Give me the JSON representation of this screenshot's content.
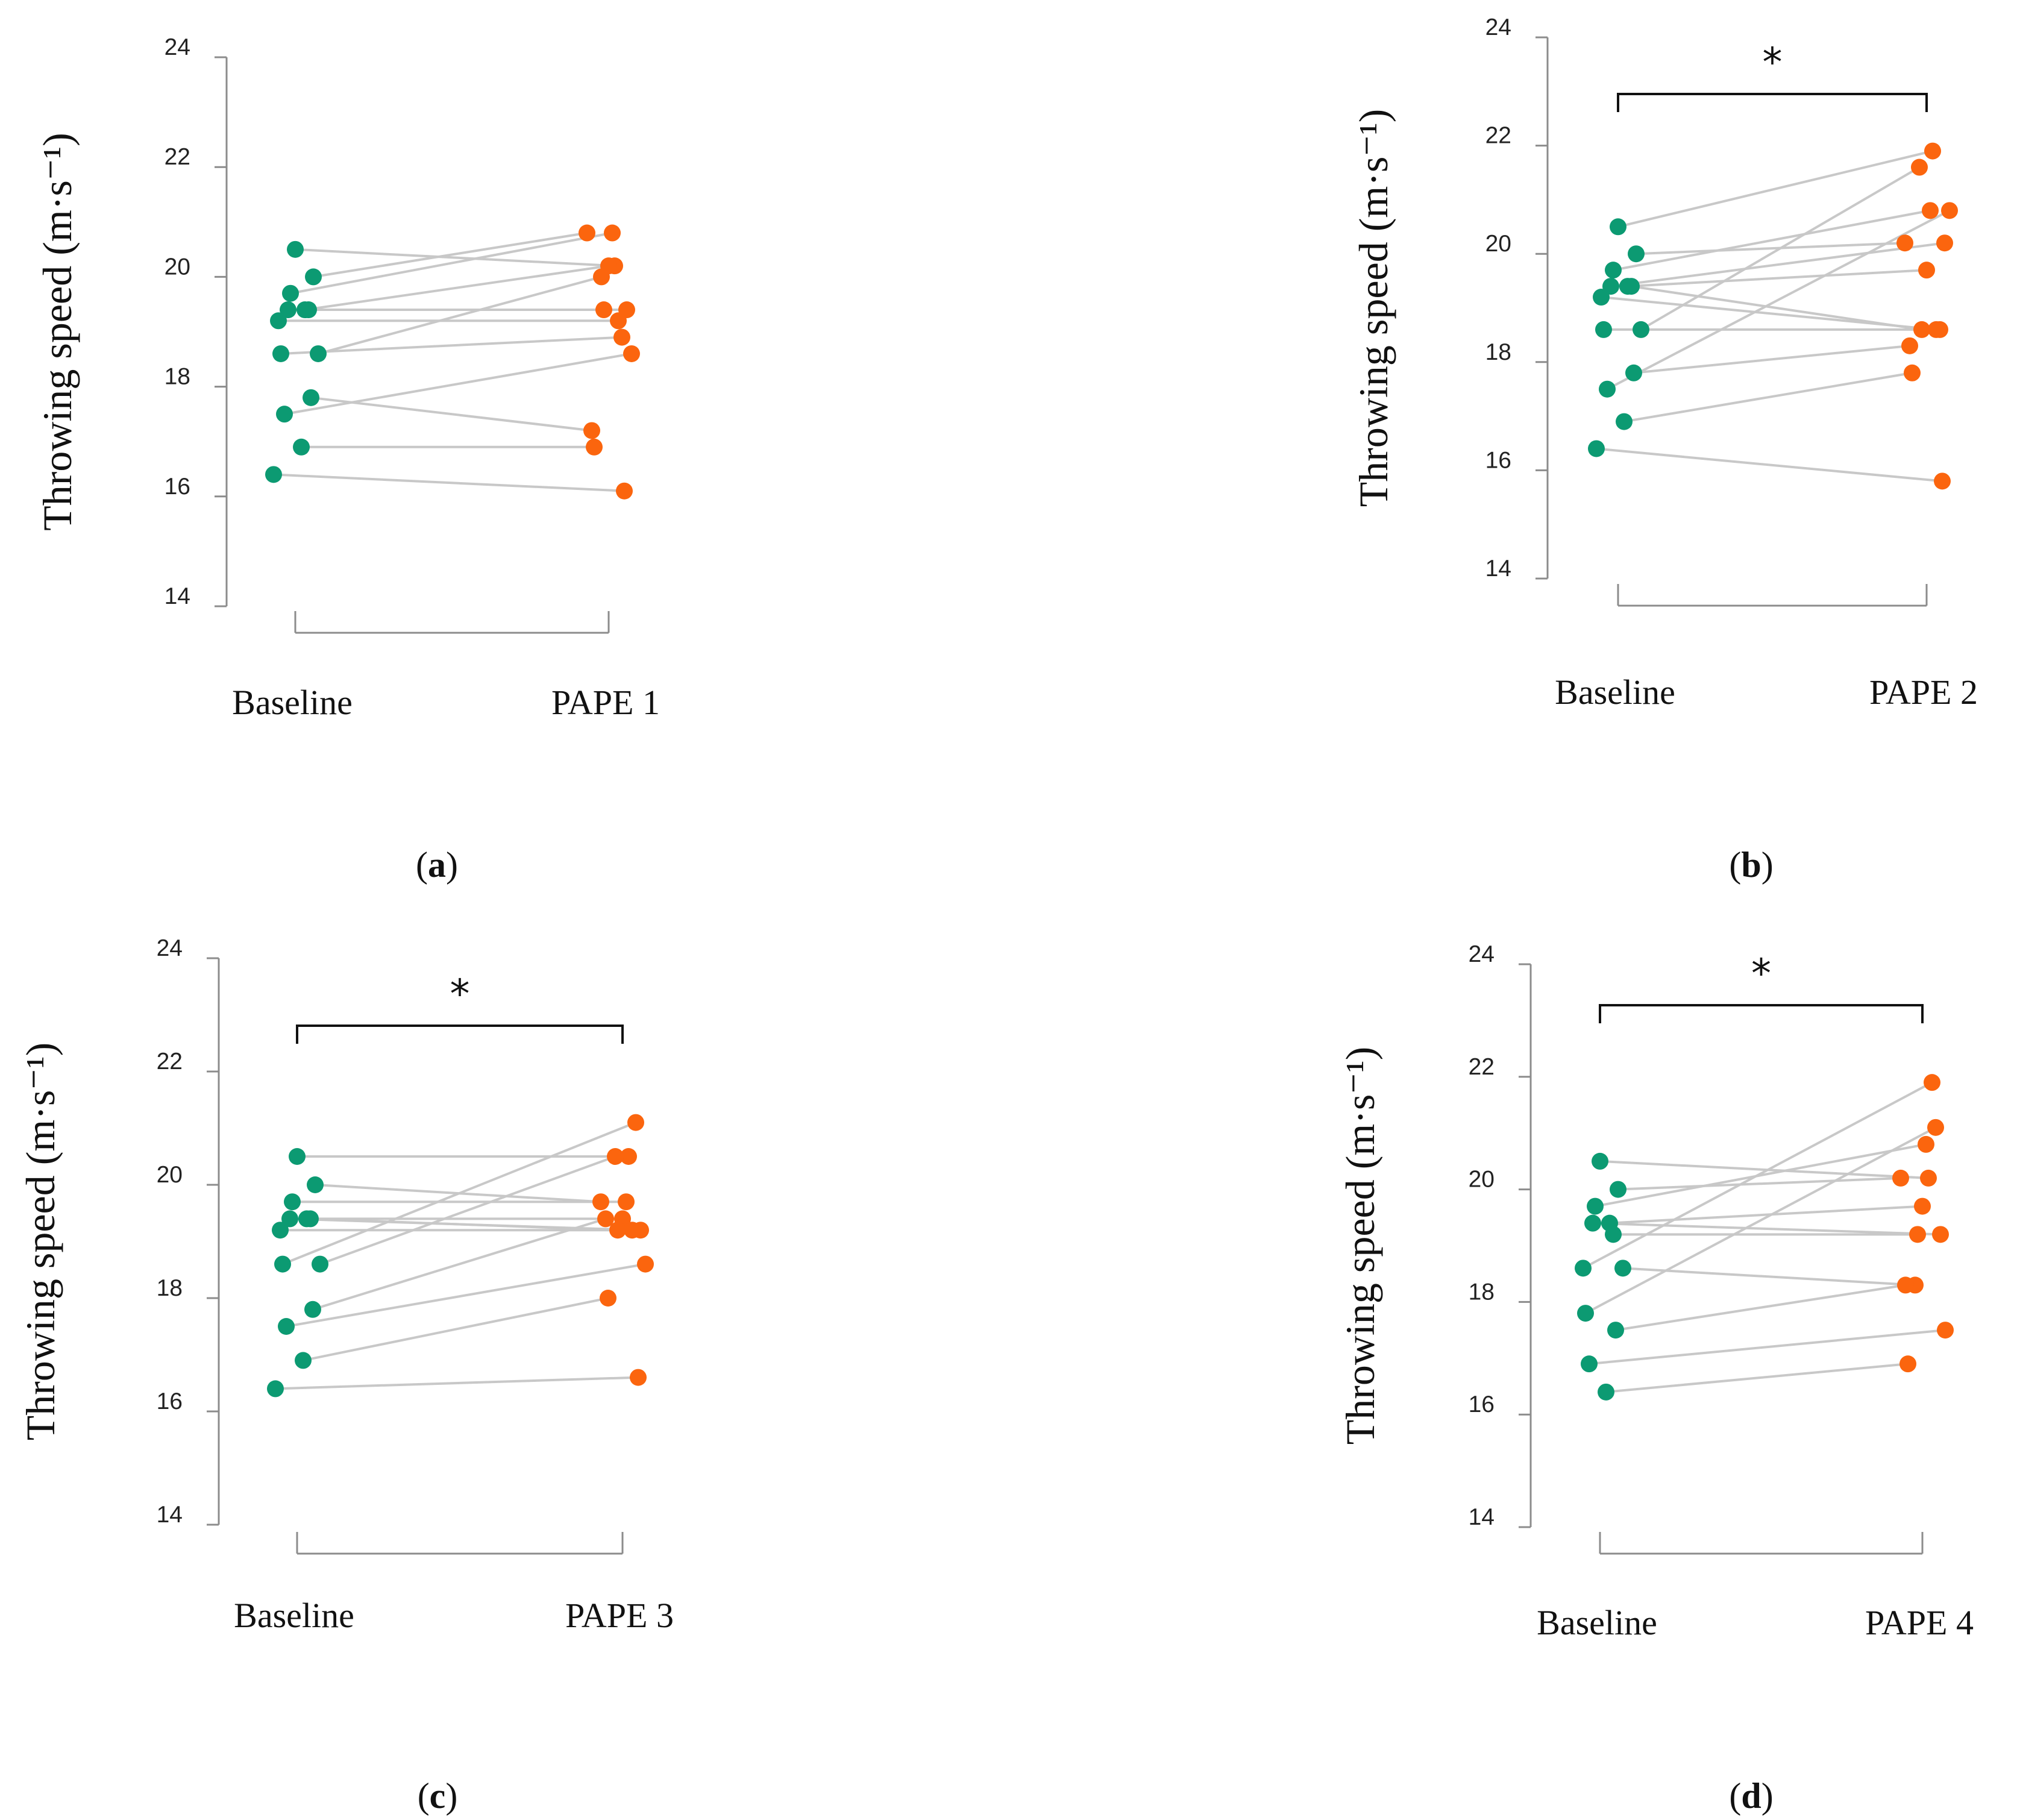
{
  "colors": {
    "baseline": "#0c9a72",
    "pape": "#fb650e",
    "line": "#c8c8c8",
    "axis": "#8c8c8c",
    "bracket": "#111111"
  },
  "chart_data": [
    {
      "type": "scatter",
      "panel": "a",
      "caption_label": "a",
      "ylabel": "Throwing speed (m·s⁻¹)",
      "ylim": [
        14,
        24
      ],
      "yticks": [
        "14",
        "16",
        "18",
        "20",
        "22",
        "24"
      ],
      "categories": [
        "Baseline",
        "PAPE 1"
      ],
      "significance": "",
      "pairs": [
        [
          20.5,
          20.2
        ],
        [
          20.0,
          20.8
        ],
        [
          19.7,
          20.8
        ],
        [
          19.4,
          20.2
        ],
        [
          19.4,
          19.4
        ],
        [
          19.4,
          19.4
        ],
        [
          19.2,
          19.2
        ],
        [
          18.6,
          20.0
        ],
        [
          18.6,
          18.9
        ],
        [
          17.8,
          17.2
        ],
        [
          17.5,
          18.6
        ],
        [
          16.9,
          16.9
        ],
        [
          16.4,
          16.1
        ]
      ]
    },
    {
      "type": "scatter",
      "panel": "b",
      "caption_label": "b",
      "ylabel": "Throwing speed (m·s⁻¹)",
      "ylim": [
        14,
        24
      ],
      "yticks": [
        "14",
        "16",
        "18",
        "20",
        "22",
        "24"
      ],
      "categories": [
        "Baseline",
        "PAPE 2"
      ],
      "significance": "*",
      "pairs": [
        [
          20.5,
          21.9
        ],
        [
          20.0,
          20.2
        ],
        [
          19.7,
          20.8
        ],
        [
          19.4,
          19.7
        ],
        [
          19.4,
          20.2
        ],
        [
          19.4,
          18.6
        ],
        [
          19.2,
          18.6
        ],
        [
          18.6,
          21.6
        ],
        [
          18.6,
          18.6
        ],
        [
          17.8,
          18.3
        ],
        [
          17.5,
          20.8
        ],
        [
          16.9,
          17.8
        ],
        [
          16.4,
          15.8
        ]
      ]
    },
    {
      "type": "scatter",
      "panel": "c",
      "caption_label": "c",
      "ylabel": "Throwing speed (m·s⁻¹)",
      "ylim": [
        14,
        24
      ],
      "yticks": [
        "14",
        "16",
        "18",
        "20",
        "22",
        "24"
      ],
      "categories": [
        "Baseline",
        "PAPE 3"
      ],
      "significance": "*",
      "pairs": [
        [
          20.5,
          20.5
        ],
        [
          20.0,
          19.7
        ],
        [
          19.7,
          19.7
        ],
        [
          19.4,
          19.4
        ],
        [
          19.4,
          19.2
        ],
        [
          19.4,
          19.2
        ],
        [
          19.2,
          19.2
        ],
        [
          18.6,
          20.5
        ],
        [
          18.6,
          21.1
        ],
        [
          17.8,
          19.4
        ],
        [
          17.5,
          18.6
        ],
        [
          16.9,
          18.0
        ],
        [
          16.4,
          16.6
        ]
      ]
    },
    {
      "type": "scatter",
      "panel": "d",
      "caption_label": "d",
      "ylabel": "Throwing speed (m·s⁻¹)",
      "ylim": [
        14,
        24
      ],
      "yticks": [
        "14",
        "16",
        "18",
        "20",
        "22",
        "24"
      ],
      "categories": [
        "Baseline",
        "PAPE 4"
      ],
      "significance": "*",
      "pairs": [
        [
          20.5,
          20.2
        ],
        [
          20.0,
          20.2
        ],
        [
          19.7,
          20.8
        ],
        [
          19.4,
          19.7
        ],
        [
          19.4,
          19.2
        ],
        [
          19.2,
          19.2
        ],
        [
          18.6,
          21.9
        ],
        [
          18.6,
          18.3
        ],
        [
          17.8,
          21.1
        ],
        [
          17.5,
          18.3
        ],
        [
          16.9,
          17.5
        ],
        [
          16.4,
          16.9
        ]
      ]
    }
  ]
}
